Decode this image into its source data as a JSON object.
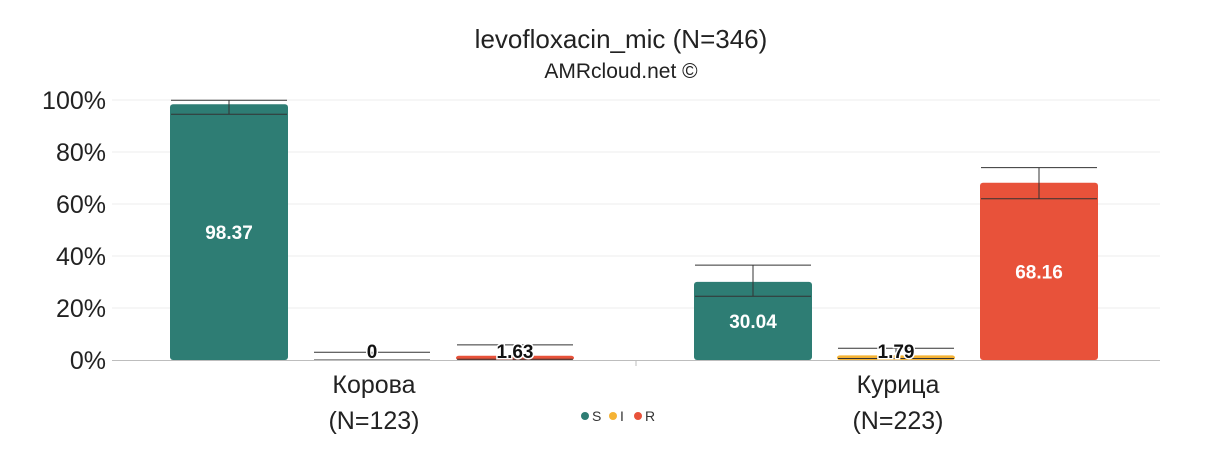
{
  "chart_data": {
    "type": "bar",
    "title": "levofloxacin_mic (N=346)",
    "subtitle": "AMRcloud.net ©",
    "categories": [
      "Корова",
      "Курица"
    ],
    "category_counts": [
      "(N=123)",
      "(N=223)"
    ],
    "ylim": [
      0,
      100
    ],
    "yticks": [
      "0%",
      "20%",
      "40%",
      "60%",
      "80%",
      "100%"
    ],
    "grid": true,
    "legend_position": "bottom-center",
    "series": [
      {
        "name": "S",
        "color": "#2e7d74",
        "values": [
          98.37,
          30.04
        ],
        "labels": [
          "98.37",
          "30.04"
        ],
        "ci": [
          [
            94.5,
            99.9
          ],
          [
            24.5,
            36.5
          ]
        ]
      },
      {
        "name": "I",
        "color": "#f5b335",
        "values": [
          0,
          1.79
        ],
        "labels": [
          "0",
          "1.79"
        ],
        "ci": [
          [
            0,
            3.0
          ],
          [
            0.6,
            4.5
          ]
        ]
      },
      {
        "name": "R",
        "color": "#e8523a",
        "values": [
          1.63,
          68.16
        ],
        "labels": [
          "1.63",
          "68.16"
        ],
        "ci": [
          [
            0.3,
            5.8
          ],
          [
            62.0,
            74.0
          ]
        ]
      }
    ]
  }
}
